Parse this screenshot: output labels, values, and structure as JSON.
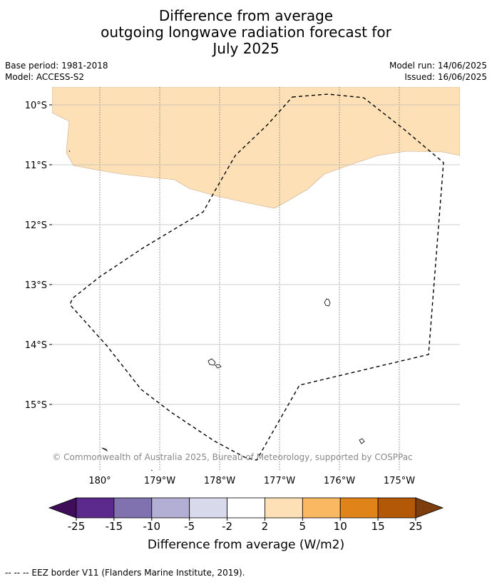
{
  "title": {
    "line1": "Difference from average",
    "line2": "outgoing longwave radiation forecast for",
    "line3": "July 2025"
  },
  "meta": {
    "base_period": "Base period: 1981-2018",
    "model": "Model: ACCESS-S2",
    "model_run": "Model run: 14/06/2025",
    "issued": "Issued: 16/06/2025"
  },
  "map": {
    "lat_labels": [
      "10°S",
      "11°S",
      "12°S",
      "13°S",
      "14°S",
      "15°S"
    ],
    "lon_labels": [
      "180°",
      "179°W",
      "178°W",
      "177°W",
      "176°W",
      "175°W"
    ],
    "anomaly_fill_color": "#fde0b6",
    "copyright": "© Commonwealth of Australia 2025, Bureau of Meteorology, supported by COSPPac"
  },
  "colorbar": {
    "labels": [
      "-25",
      "-15",
      "-10",
      "-5",
      "-2",
      "2",
      "5",
      "10",
      "15",
      "25"
    ],
    "colors": [
      "#3f0d5a",
      "#5b2a8c",
      "#8072ae",
      "#b3aed4",
      "#d9d9ec",
      "#ffffff",
      "#fde0b6",
      "#fbb863",
      "#e08319",
      "#b35806",
      "#7e3d0c"
    ],
    "title": "Difference from average (W/m2)"
  },
  "footer": {
    "legend": "--  --  -- EEZ border V11 (Flanders Marine Institute, 2019)."
  }
}
